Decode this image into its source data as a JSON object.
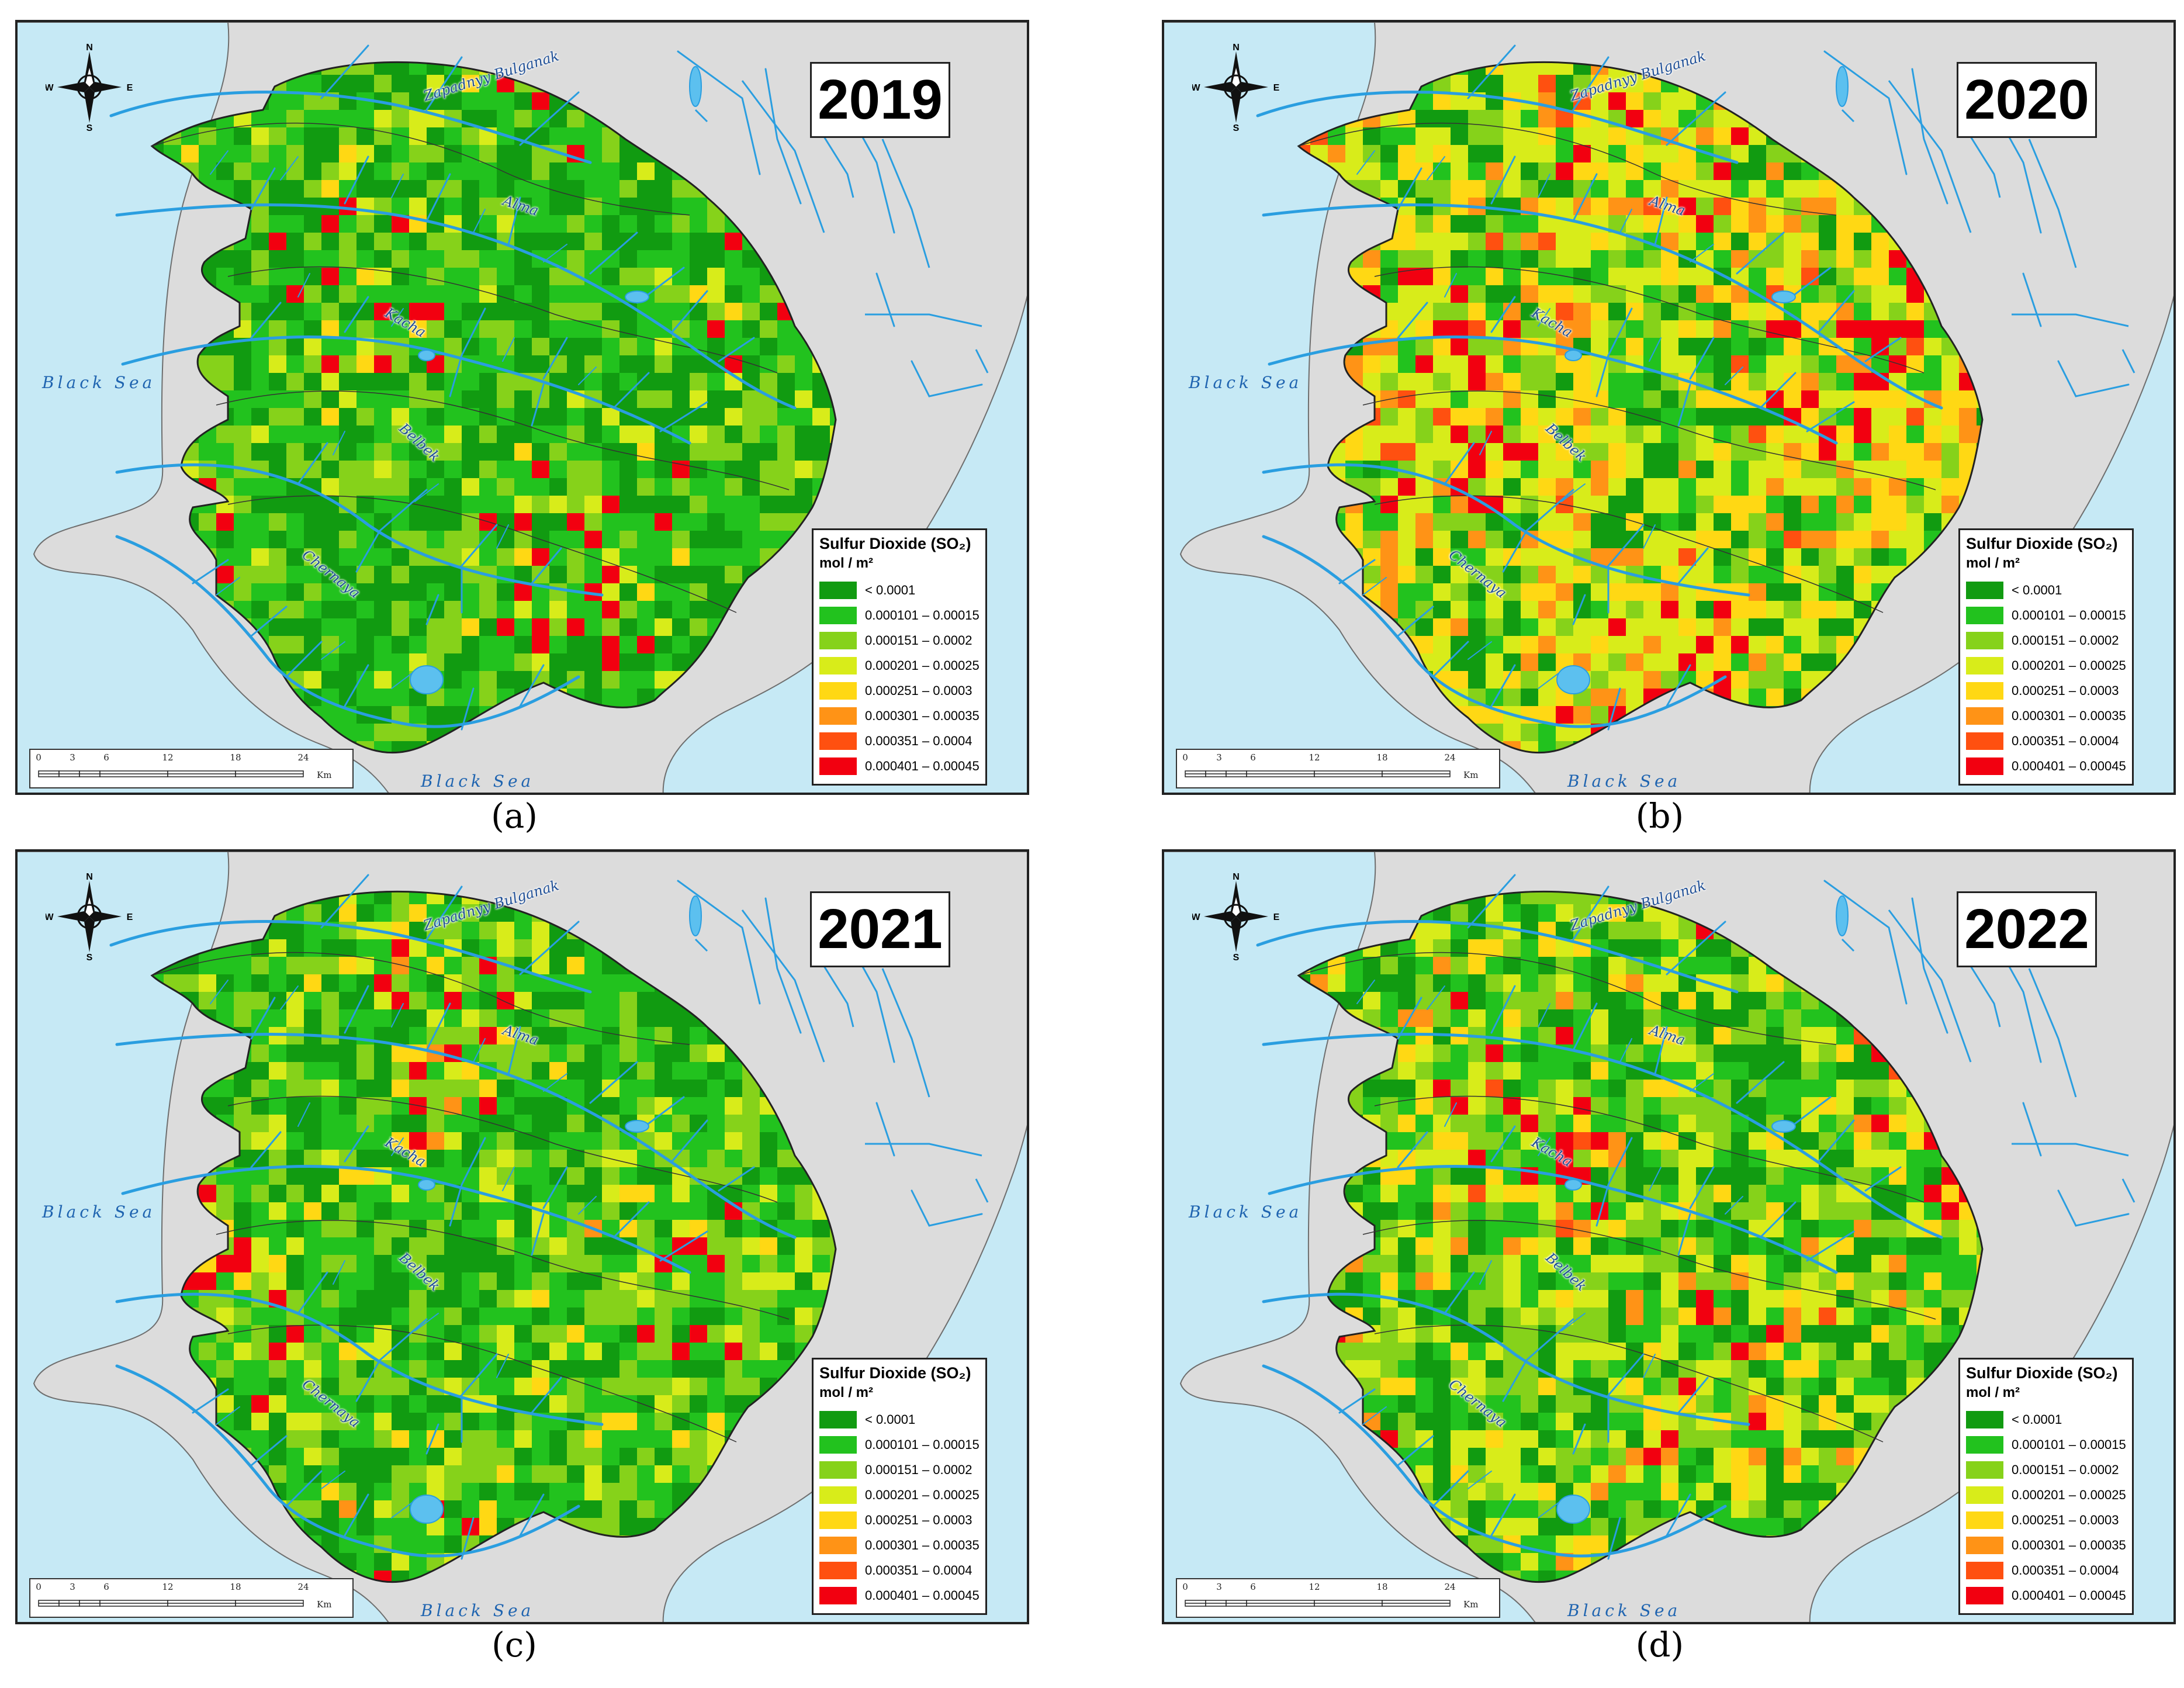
{
  "figure": {
    "panels": [
      {
        "id": "a",
        "year": "2019",
        "caption": "(a)"
      },
      {
        "id": "b",
        "year": "2020",
        "caption": "(b)"
      },
      {
        "id": "c",
        "year": "2021",
        "caption": "(c)"
      },
      {
        "id": "d",
        "year": "2022",
        "caption": "(d)"
      }
    ],
    "legend": {
      "title": "Sulfur Dioxide (SO₂)",
      "unit": "mol / m²",
      "classes": [
        {
          "label": "< 0.0001",
          "color": "#119b11"
        },
        {
          "label": "0.000101 – 0.00015",
          "color": "#22c21e"
        },
        {
          "label": "0.000151 – 0.0002",
          "color": "#86d21a"
        },
        {
          "label": "0.000201 – 0.00025",
          "color": "#d8ec1a"
        },
        {
          "label": "0.000251 – 0.0003",
          "color": "#ffd814"
        },
        {
          "label": "0.000301 – 0.00035",
          "color": "#ff9316"
        },
        {
          "label": "0.000351 – 0.0004",
          "color": "#ff5010"
        },
        {
          "label": "0.000401 – 0.00045",
          "color": "#f20010"
        }
      ]
    },
    "sea_labels": [
      "Black Sea",
      "Black Sea"
    ],
    "rivers": [
      "Zapadnyy Bulganak",
      "Alma",
      "Kacha",
      "Belbek",
      "Chernaya"
    ],
    "compass": {
      "n": "N",
      "s": "S",
      "e": "E",
      "w": "W"
    },
    "scale": {
      "ticks": [
        "0",
        "3",
        "6",
        "12",
        "18",
        "24"
      ],
      "unit": "Km"
    },
    "colors": {
      "sea": "#c6e9f5",
      "land": "#dcdcdc",
      "river": "#2a9ee0",
      "border": "#222222"
    }
  }
}
